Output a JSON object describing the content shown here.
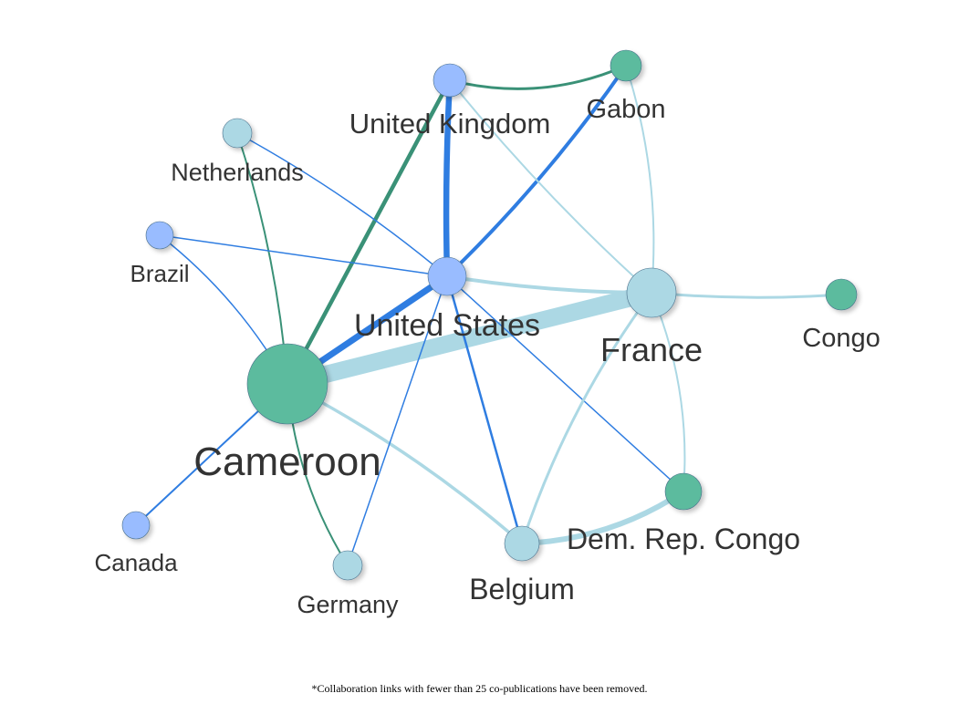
{
  "colors": {
    "green": "#5cbb9e",
    "blue": "#99bcff",
    "light_blue": "#acd8e4",
    "edge_green": "#3a9177",
    "edge_blue": "#2f7de1",
    "edge_light_blue": "#acd8e4",
    "label": "#333333"
  },
  "nodes": [
    {
      "id": "cameroon",
      "label": "Cameroon",
      "color": "green"
    },
    {
      "id": "united-states",
      "label": "United States",
      "color": "blue"
    },
    {
      "id": "france",
      "label": "France",
      "color": "light_blue"
    },
    {
      "id": "united-kingdom",
      "label": "United Kingdom",
      "color": "blue"
    },
    {
      "id": "gabon",
      "label": "Gabon",
      "color": "green"
    },
    {
      "id": "netherlands",
      "label": "Netherlands",
      "color": "light_blue"
    },
    {
      "id": "brazil",
      "label": "Brazil",
      "color": "blue"
    },
    {
      "id": "congo",
      "label": "Congo",
      "color": "green"
    },
    {
      "id": "dem-rep-congo",
      "label": "Dem. Rep. Congo",
      "color": "green"
    },
    {
      "id": "belgium",
      "label": "Belgium",
      "color": "light_blue"
    },
    {
      "id": "germany",
      "label": "Germany",
      "color": "light_blue"
    },
    {
      "id": "canada",
      "label": "Canada",
      "color": "blue"
    }
  ],
  "edges": [
    {
      "source": "cameroon",
      "target": "france",
      "color": "edge_light_blue"
    },
    {
      "source": "cameroon",
      "target": "united-states",
      "color": "edge_blue"
    },
    {
      "source": "cameroon",
      "target": "united-kingdom",
      "color": "edge_green"
    },
    {
      "source": "cameroon",
      "target": "netherlands",
      "color": "edge_green"
    },
    {
      "source": "cameroon",
      "target": "brazil",
      "color": "edge_blue"
    },
    {
      "source": "cameroon",
      "target": "canada",
      "color": "edge_blue"
    },
    {
      "source": "cameroon",
      "target": "germany",
      "color": "edge_green"
    },
    {
      "source": "cameroon",
      "target": "belgium",
      "color": "edge_light_blue"
    },
    {
      "source": "united-states",
      "target": "united-kingdom",
      "color": "edge_blue"
    },
    {
      "source": "united-states",
      "target": "gabon",
      "color": "edge_blue"
    },
    {
      "source": "united-states",
      "target": "france",
      "color": "edge_light_blue"
    },
    {
      "source": "united-states",
      "target": "netherlands",
      "color": "edge_blue"
    },
    {
      "source": "united-states",
      "target": "brazil",
      "color": "edge_blue"
    },
    {
      "source": "united-states",
      "target": "belgium",
      "color": "edge_blue"
    },
    {
      "source": "united-states",
      "target": "germany",
      "color": "edge_blue"
    },
    {
      "source": "united-states",
      "target": "dem-rep-congo",
      "color": "edge_blue"
    },
    {
      "source": "united-kingdom",
      "target": "gabon",
      "color": "edge_green"
    },
    {
      "source": "united-kingdom",
      "target": "france",
      "color": "edge_light_blue"
    },
    {
      "source": "gabon",
      "target": "france",
      "color": "edge_light_blue"
    },
    {
      "source": "france",
      "target": "congo",
      "color": "edge_light_blue"
    },
    {
      "source": "france",
      "target": "dem-rep-congo",
      "color": "edge_light_blue"
    },
    {
      "source": "france",
      "target": "belgium",
      "color": "edge_light_blue"
    },
    {
      "source": "belgium",
      "target": "dem-rep-congo",
      "color": "edge_light_blue"
    }
  ],
  "footnote": "*Collaboration links with fewer than 25 co-publications have been removed."
}
